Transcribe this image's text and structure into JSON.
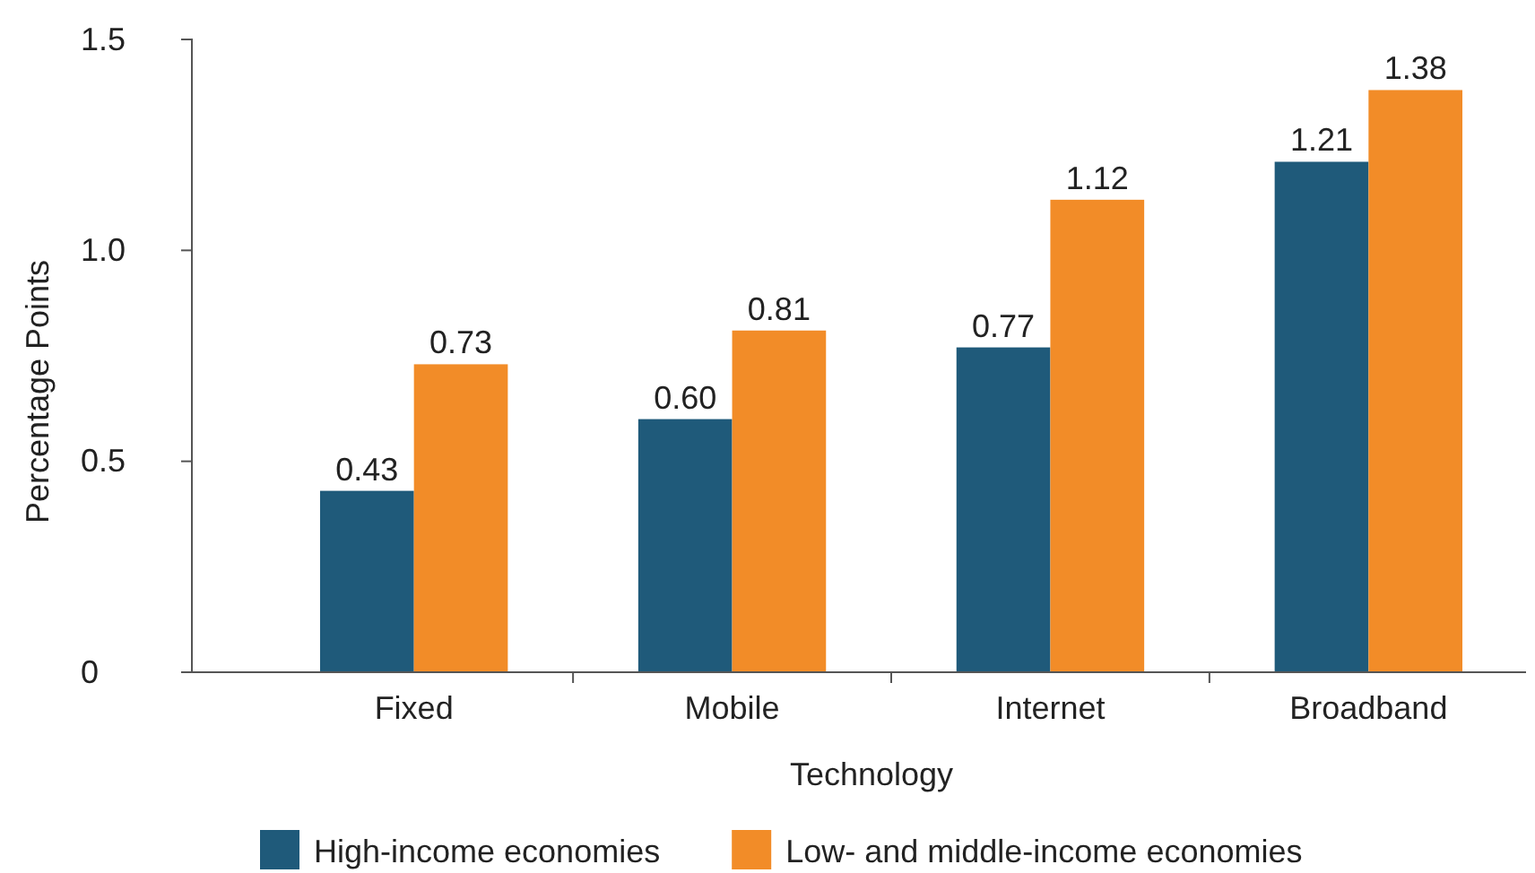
{
  "chart_data": {
    "type": "bar",
    "xlabel": "Technology",
    "ylabel": "Percentage Points",
    "categories": [
      "Fixed",
      "Mobile",
      "Internet",
      "Broadband"
    ],
    "series": [
      {
        "name": "High-income economies",
        "color": "#1f5a7a",
        "values": [
          0.43,
          0.6,
          0.77,
          1.21
        ],
        "value_labels": [
          "0.43",
          "0.60",
          "0.77",
          "1.21"
        ]
      },
      {
        "name": "Low- and middle-income economies",
        "color": "#f28c28",
        "values": [
          0.73,
          0.81,
          1.12,
          1.38
        ],
        "value_labels": [
          "0.73",
          "0.81",
          "1.12",
          "1.38"
        ]
      }
    ],
    "ylim": [
      0,
      1.5
    ],
    "yticks": [
      0,
      {
        "value": 0.5,
        "label": "0.5"
      },
      {
        "value": 1,
        "label": "1.0"
      },
      {
        "value": 1.5,
        "label": "1.5"
      }
    ],
    "grid": false,
    "legend": "bottom"
  }
}
